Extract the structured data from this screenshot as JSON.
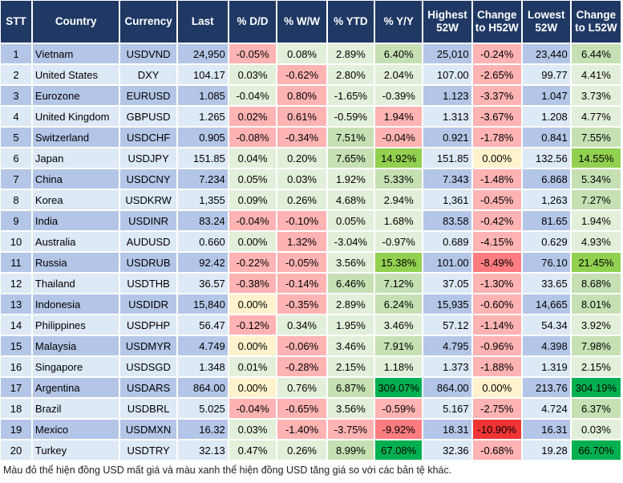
{
  "headers": [
    "STT",
    "Country",
    "Currency",
    "Last",
    "% D/D",
    "% W/W",
    "% YTD",
    "% Y/Y",
    "Highest 52W",
    "Change to H52W",
    "Lowest 52W",
    "Change to L52W"
  ],
  "color_legend": {
    "r": "#ffb3b3",
    "R": "#ff7c80",
    "RR": "#f03434",
    "g": "#e2efda",
    "G": "#c6e0b4",
    "GG": "#92d050",
    "GGG": "#00b050",
    "y": "#fff2cc"
  },
  "rows": [
    {
      "stt": "1",
      "country": "Vietnam",
      "currency": "USDVND",
      "last": "24,950",
      "dd": "-0.05%",
      "ww": "0.08%",
      "ytd": "2.89%",
      "yy": "6.40%",
      "high": "25,010",
      "chh": "-0.24%",
      "low": "23,440",
      "chl": "6.44%",
      "colors": [
        "r",
        "g",
        "g",
        "G",
        "r",
        "G"
      ]
    },
    {
      "stt": "2",
      "country": "United States",
      "currency": "DXY",
      "last": "104.17",
      "dd": "0.03%",
      "ww": "-0.62%",
      "ytd": "2.80%",
      "yy": "2.04%",
      "high": "107.00",
      "chh": "-2.65%",
      "low": "99.77",
      "chl": "4.41%",
      "colors": [
        "g",
        "r",
        "g",
        "g",
        "r",
        "g"
      ]
    },
    {
      "stt": "3",
      "country": "Eurozone",
      "currency": "EURUSD",
      "last": "1.085",
      "dd": "-0.04%",
      "ww": "0.80%",
      "ytd": "-1.65%",
      "yy": "-0.39%",
      "high": "1.123",
      "chh": "-3.37%",
      "low": "1.047",
      "chl": "3.73%",
      "colors": [
        "g",
        "r",
        "g",
        "g",
        "r",
        "g"
      ]
    },
    {
      "stt": "4",
      "country": "United Kingdom",
      "currency": "GBPUSD",
      "last": "1.265",
      "dd": "0.02%",
      "ww": "0.61%",
      "ytd": "-0.59%",
      "yy": "1.94%",
      "high": "1.313",
      "chh": "-3.67%",
      "low": "1.208",
      "chl": "4.77%",
      "colors": [
        "r",
        "r",
        "g",
        "r",
        "r",
        "g"
      ]
    },
    {
      "stt": "5",
      "country": "Switzerland",
      "currency": "USDCHF",
      "last": "0.905",
      "dd": "-0.08%",
      "ww": "-0.34%",
      "ytd": "7.51%",
      "yy": "-0.04%",
      "high": "0.921",
      "chh": "-1.78%",
      "low": "0.841",
      "chl": "7.55%",
      "colors": [
        "r",
        "r",
        "G",
        "r",
        "r",
        "G"
      ]
    },
    {
      "stt": "6",
      "country": "Japan",
      "currency": "USDJPY",
      "last": "151.85",
      "dd": "0.04%",
      "ww": "0.20%",
      "ytd": "7.65%",
      "yy": "14.92%",
      "high": "151.85",
      "chh": "0.00%",
      "low": "132.56",
      "chl": "14.55%",
      "colors": [
        "g",
        "g",
        "G",
        "GG",
        "y",
        "GG"
      ]
    },
    {
      "stt": "7",
      "country": "China",
      "currency": "USDCNY",
      "last": "7.234",
      "dd": "0.05%",
      "ww": "0.03%",
      "ytd": "1.92%",
      "yy": "5.33%",
      "high": "7.343",
      "chh": "-1.48%",
      "low": "6.868",
      "chl": "5.34%",
      "colors": [
        "g",
        "g",
        "g",
        "G",
        "r",
        "G"
      ]
    },
    {
      "stt": "8",
      "country": "Korea",
      "currency": "USDKRW",
      "last": "1,355",
      "dd": "0.09%",
      "ww": "0.26%",
      "ytd": "4.68%",
      "yy": "2.94%",
      "high": "1,361",
      "chh": "-0.45%",
      "low": "1,263",
      "chl": "7.27%",
      "colors": [
        "g",
        "g",
        "g",
        "g",
        "r",
        "G"
      ]
    },
    {
      "stt": "9",
      "country": "India",
      "currency": "USDINR",
      "last": "83.24",
      "dd": "-0.04%",
      "ww": "-0.10%",
      "ytd": "0.05%",
      "yy": "1.68%",
      "high": "83.58",
      "chh": "-0.42%",
      "low": "81.65",
      "chl": "1.94%",
      "colors": [
        "r",
        "r",
        "g",
        "g",
        "r",
        "g"
      ]
    },
    {
      "stt": "10",
      "country": "Australia",
      "currency": "AUDUSD",
      "last": "0.660",
      "dd": "0.00%",
      "ww": "1.32%",
      "ytd": "-3.04%",
      "yy": "-0.97%",
      "high": "0.689",
      "chh": "-4.15%",
      "low": "0.629",
      "chl": "4.93%",
      "colors": [
        "g",
        "r",
        "g",
        "g",
        "r",
        "g"
      ]
    },
    {
      "stt": "11",
      "country": "Russia",
      "currency": "USDRUB",
      "last": "92.42",
      "dd": "-0.22%",
      "ww": "-0.05%",
      "ytd": "3.56%",
      "yy": "15.38%",
      "high": "101.00",
      "chh": "-8.49%",
      "low": "76.10",
      "chl": "21.45%",
      "colors": [
        "r",
        "r",
        "g",
        "GG",
        "R",
        "GG"
      ]
    },
    {
      "stt": "12",
      "country": "Thailand",
      "currency": "USDTHB",
      "last": "36.57",
      "dd": "-0.38%",
      "ww": "-0.14%",
      "ytd": "6.46%",
      "yy": "7.12%",
      "high": "37.05",
      "chh": "-1.30%",
      "low": "33.65",
      "chl": "8.68%",
      "colors": [
        "r",
        "r",
        "G",
        "G",
        "r",
        "G"
      ]
    },
    {
      "stt": "13",
      "country": "Indonesia",
      "currency": "USDIDR",
      "last": "15,840",
      "dd": "0.00%",
      "ww": "-0.35%",
      "ytd": "2.89%",
      "yy": "6.24%",
      "high": "15,935",
      "chh": "-0.60%",
      "low": "14,665",
      "chl": "8.01%",
      "colors": [
        "y",
        "r",
        "g",
        "G",
        "r",
        "G"
      ]
    },
    {
      "stt": "14",
      "country": "Philippines",
      "currency": "USDPHP",
      "last": "56.47",
      "dd": "-0.12%",
      "ww": "0.34%",
      "ytd": "1.95%",
      "yy": "3.46%",
      "high": "57.12",
      "chh": "-1.14%",
      "low": "54.34",
      "chl": "3.92%",
      "colors": [
        "r",
        "g",
        "g",
        "g",
        "r",
        "g"
      ]
    },
    {
      "stt": "15",
      "country": "Malaysia",
      "currency": "USDMYR",
      "last": "4.749",
      "dd": "0.00%",
      "ww": "-0.06%",
      "ytd": "3.46%",
      "yy": "7.91%",
      "high": "4.795",
      "chh": "-0.96%",
      "low": "4.398",
      "chl": "7.98%",
      "colors": [
        "y",
        "r",
        "g",
        "G",
        "r",
        "G"
      ]
    },
    {
      "stt": "16",
      "country": "Singapore",
      "currency": "USDSGD",
      "last": "1.348",
      "dd": "0.01%",
      "ww": "-0.28%",
      "ytd": "2.15%",
      "yy": "1.18%",
      "high": "1.373",
      "chh": "-1.88%",
      "low": "1.319",
      "chl": "2.15%",
      "colors": [
        "g",
        "r",
        "g",
        "g",
        "r",
        "g"
      ]
    },
    {
      "stt": "17",
      "country": "Argentina",
      "currency": "USDARS",
      "last": "864.00",
      "dd": "0.00%",
      "ww": "0.76%",
      "ytd": "6.87%",
      "yy": "309.07%",
      "high": "864.00",
      "chh": "0.00%",
      "low": "213.76",
      "chl": "304.19%",
      "colors": [
        "y",
        "g",
        "G",
        "GGG",
        "y",
        "GGG"
      ]
    },
    {
      "stt": "18",
      "country": "Brazil",
      "currency": "USDBRL",
      "last": "5.025",
      "dd": "-0.04%",
      "ww": "-0.65%",
      "ytd": "3.56%",
      "yy": "-0.59%",
      "high": "5.167",
      "chh": "-2.75%",
      "low": "4.724",
      "chl": "6.37%",
      "colors": [
        "r",
        "r",
        "g",
        "r",
        "r",
        "G"
      ]
    },
    {
      "stt": "19",
      "country": "Mexico",
      "currency": "USDMXN",
      "last": "16.32",
      "dd": "0.03%",
      "ww": "-1.40%",
      "ytd": "-3.75%",
      "yy": "-9.92%",
      "high": "18.31",
      "chh": "-10.90%",
      "low": "16.31",
      "chl": "0.03%",
      "colors": [
        "g",
        "r",
        "r",
        "R",
        "RR",
        "g"
      ]
    },
    {
      "stt": "20",
      "country": "Turkey",
      "currency": "USDTRY",
      "last": "32.13",
      "dd": "0.47%",
      "ww": "0.26%",
      "ytd": "8.99%",
      "yy": "67.08%",
      "high": "32.36",
      "chh": "-0.68%",
      "low": "19.28",
      "chl": "66.70%",
      "colors": [
        "g",
        "g",
        "G",
        "GGG",
        "r",
        "GGG"
      ]
    }
  ],
  "footnote": "Màu đỏ thể hiện đồng USD mất giá và màu xanh thể hiện đồng USD tăng giá so với các bản tệ khác."
}
